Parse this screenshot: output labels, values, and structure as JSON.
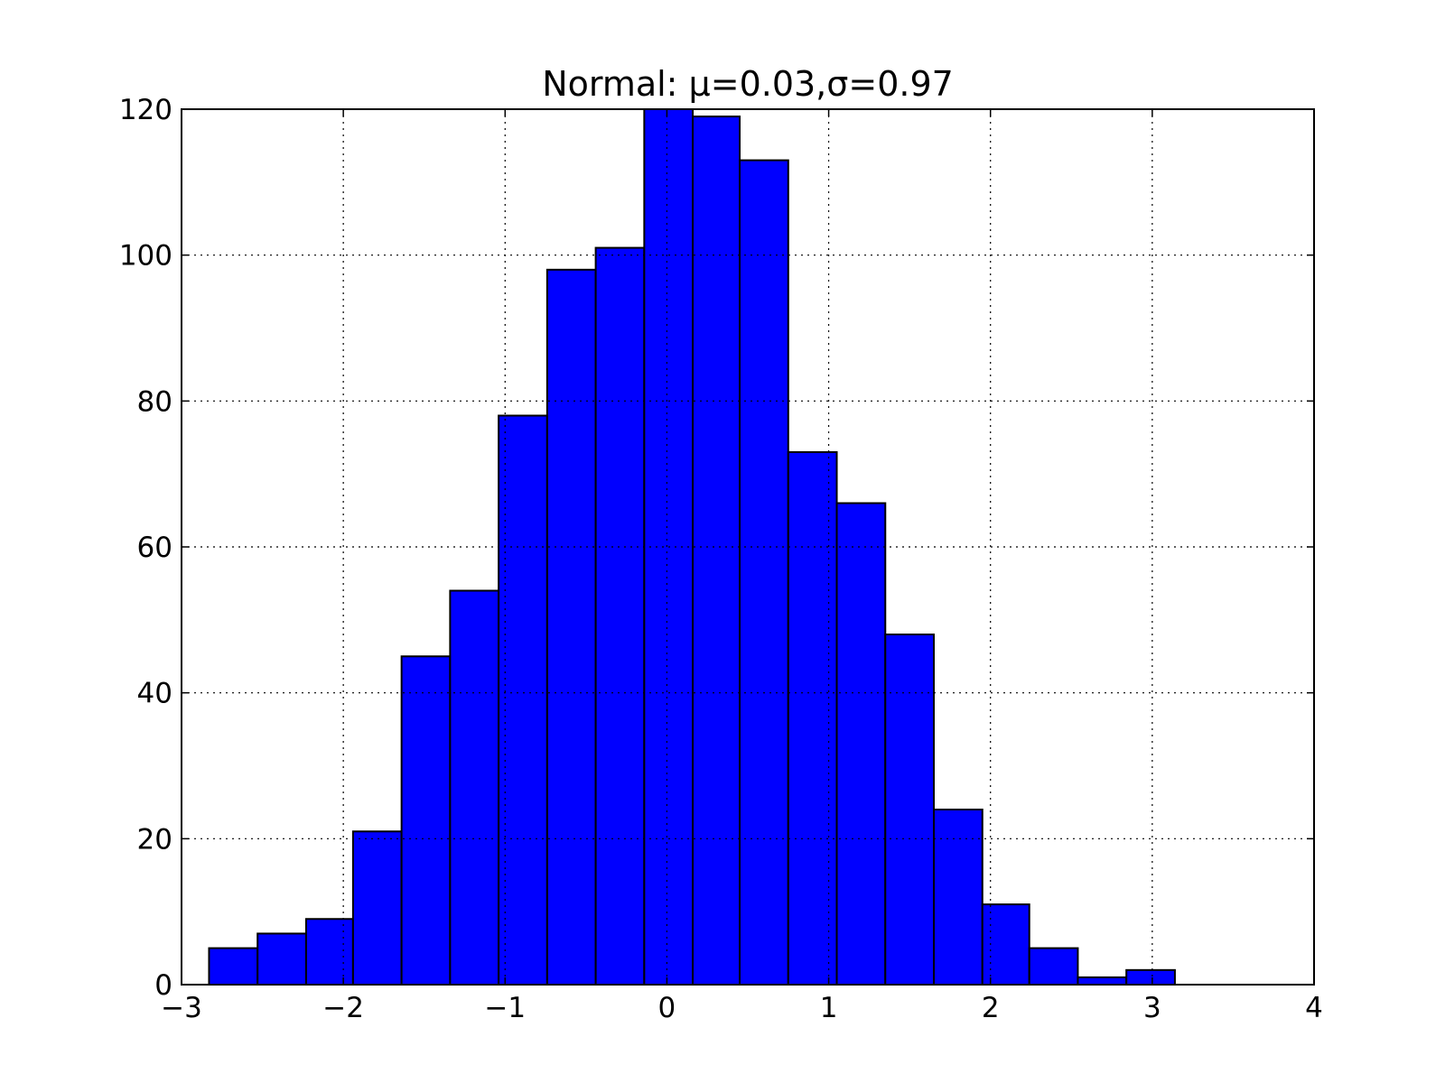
{
  "chart_data": {
    "type": "histogram",
    "title": "Normal: μ=0.03,σ=0.97",
    "bins": [
      -2.83,
      -2.53,
      -2.23,
      -1.94,
      -1.64,
      -1.34,
      -1.04,
      -0.74,
      -0.44,
      -0.14,
      0.16,
      0.45,
      0.75,
      1.05,
      1.35,
      1.65,
      1.95,
      2.24,
      2.54,
      2.84,
      3.14
    ],
    "values": [
      5,
      7,
      9,
      21,
      45,
      54,
      78,
      98,
      101,
      120,
      119,
      113,
      73,
      66,
      48,
      24,
      11,
      5,
      1,
      2
    ],
    "color": "#0000ff",
    "xlim": [
      -3,
      4
    ],
    "xticks": [
      {
        "value": -3,
        "label": "−3"
      },
      {
        "value": -2,
        "label": "−2"
      },
      {
        "value": -1,
        "label": "−1"
      },
      0,
      1,
      2,
      3,
      4
    ],
    "ylim": [
      0,
      120
    ],
    "yticks": [
      0,
      20,
      40,
      60,
      80,
      100,
      120
    ],
    "grid": true
  }
}
